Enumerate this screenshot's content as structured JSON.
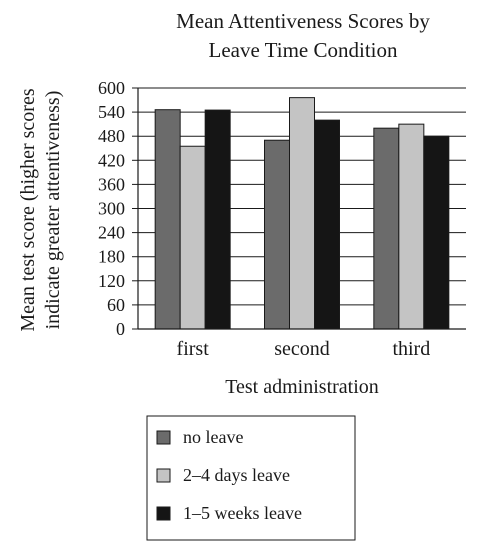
{
  "chart_data": {
    "type": "bar",
    "title_lines": [
      "Mean Attentiveness Scores by",
      "Leave Time Condition"
    ],
    "xlabel": "Test administration",
    "ylabel_lines": [
      "Mean test score (higher scores",
      "indicate greater attentiveness)"
    ],
    "ylim": [
      0,
      600
    ],
    "yticks": [
      0,
      60,
      120,
      180,
      240,
      300,
      360,
      420,
      480,
      540,
      600
    ],
    "grid": true,
    "legend_position": "bottom-center",
    "categories": [
      "first",
      "second",
      "third"
    ],
    "series": [
      {
        "name": "no leave",
        "color": "#6b6b6b",
        "values": [
          546,
          470,
          500
        ]
      },
      {
        "name": "2–4 days leave",
        "color": "#c4c4c4",
        "values": [
          455,
          576,
          510
        ]
      },
      {
        "name": "1–5 weeks leave",
        "color": "#151515",
        "values": [
          545,
          520,
          480
        ]
      }
    ]
  }
}
